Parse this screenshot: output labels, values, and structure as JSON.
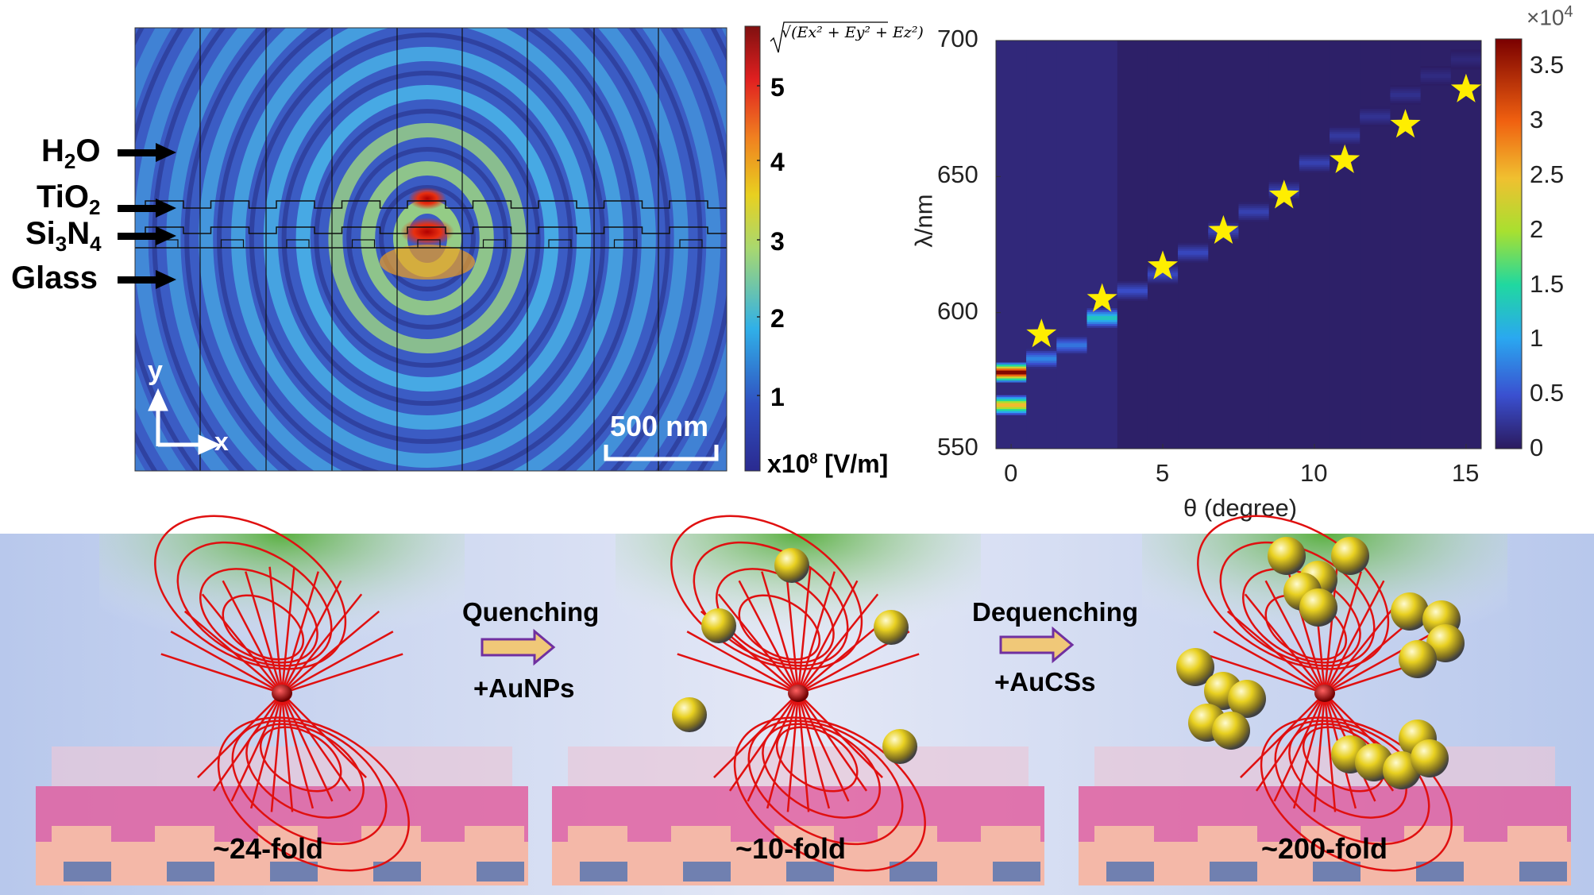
{
  "field_map": {
    "layers": [
      "H2O",
      "TiO2",
      "Si3N4",
      "Glass"
    ],
    "layer_labels": {
      "h2o": "H",
      "h2o_sub": "2",
      "h2o_end": "O",
      "tio2": "TiO",
      "tio2_sub": "2",
      "si": "Si",
      "si_sub1": "3",
      "si_n": "N",
      "si_sub2": "4",
      "glass": "Glass"
    },
    "axis_y": "y",
    "axis_x": "x",
    "scale_bar": "500 nm",
    "colorbar": {
      "title": "√(Ex² + Ey² + Ez²)",
      "ticks": [
        "1",
        "2",
        "3",
        "4",
        "5"
      ],
      "unit_prefix": "x10",
      "unit_exp": "8",
      "unit": " [V/m]",
      "range": [
        0,
        5.7
      ],
      "colormap": "jet"
    }
  },
  "chart_data": {
    "type": "heatmap",
    "xlabel": "θ (degree)",
    "ylabel": "λ/nm",
    "xlim": [
      -0.5,
      15.5
    ],
    "ylim": [
      550,
      700
    ],
    "xticks": [
      "0",
      "5",
      "10",
      "15"
    ],
    "yticks": [
      "550",
      "600",
      "650",
      "700"
    ],
    "colorbar": {
      "ticks": [
        "0",
        "0.5",
        "1",
        "1.5",
        "2",
        "2.5",
        "3",
        "3.5"
      ],
      "multiplier": "×10",
      "multiplier_exp": "4",
      "range": [
        0,
        3.75
      ]
    },
    "columns": [
      {
        "theta": 0,
        "peak_nm": 578,
        "peak_value": 37000,
        "secondary_nm": 566,
        "secondary_value": 25000
      },
      {
        "theta": 1,
        "peak_nm": 583,
        "peak_value": 8000
      },
      {
        "theta": 2,
        "peak_nm": 588,
        "peak_value": 7000
      },
      {
        "theta": 3,
        "peak_nm": 598,
        "peak_value": 13000
      },
      {
        "theta": 4,
        "peak_nm": 608,
        "peak_value": 4500
      },
      {
        "theta": 5,
        "peak_nm": 614,
        "peak_value": 4000
      },
      {
        "theta": 6,
        "peak_nm": 622,
        "peak_value": 4000
      },
      {
        "theta": 7,
        "peak_nm": 630,
        "peak_value": 3500
      },
      {
        "theta": 8,
        "peak_nm": 637,
        "peak_value": 3500
      },
      {
        "theta": 9,
        "peak_nm": 645,
        "peak_value": 3200
      },
      {
        "theta": 10,
        "peak_nm": 655,
        "peak_value": 3500
      },
      {
        "theta": 11,
        "peak_nm": 665,
        "peak_value": 2800
      },
      {
        "theta": 12,
        "peak_nm": 672,
        "peak_value": 2200
      },
      {
        "theta": 13,
        "peak_nm": 680,
        "peak_value": 2000
      },
      {
        "theta": 14,
        "peak_nm": 687,
        "peak_value": 1500
      },
      {
        "theta": 15,
        "peak_nm": 693,
        "peak_value": 1200
      }
    ],
    "stars": {
      "x": [
        1,
        3,
        5,
        7,
        9,
        11,
        13,
        15
      ],
      "y": [
        592,
        605,
        617,
        630,
        643,
        656,
        669,
        682
      ],
      "color": "#ffee00"
    }
  },
  "schematic": {
    "step1": {
      "label": "Quenching",
      "sub": "+AuNPs"
    },
    "step2": {
      "label": "Dequenching",
      "sub": "+AuCSs"
    },
    "folds": [
      "~24-fold",
      "~10-fold",
      "~200-fold"
    ],
    "colors": {
      "field_lines": "#e01010",
      "arrow_fill": "#f0c878",
      "arrow_stroke": "#7030a0",
      "gold": "#e8d020"
    }
  }
}
